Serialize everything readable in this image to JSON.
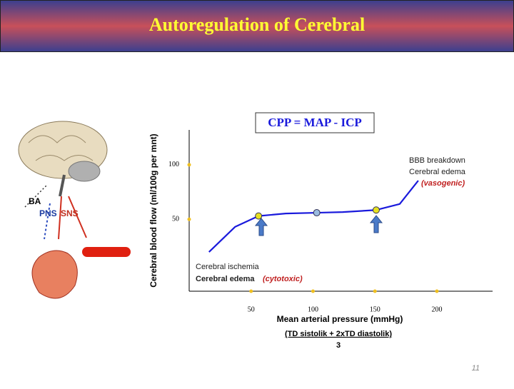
{
  "slide_title": "Autoregulation of Cerebral",
  "page_number": "11",
  "figure_labels": {
    "ba": "BA",
    "pns": "PNS",
    "sns": "SNS"
  },
  "chart_data": {
    "type": "line",
    "formula": "CPP = MAP - ICP",
    "x_label": "Mean arterial pressure  (mmHg)",
    "x_sublabel": "(TD sistolik + 2xTD diastolik)",
    "x_sublabel_denominator": "3",
    "y_label": "Cerebral blood flow (ml/100g per mnt)",
    "annotations": [
      "BBB breakdown",
      "Cerebral edema",
      "(vasogenic)",
      "Cerebral ischemia",
      "Cerebral edema",
      "(cytotoxic)"
    ],
    "xlim": [
      0,
      245
    ],
    "xticks": [
      50,
      100,
      150,
      200
    ],
    "ylim": [
      -16,
      132
    ],
    "yticks": [
      50,
      100
    ],
    "series": [
      {
        "color": "#1a1adc",
        "x": [
          16,
          37,
          56,
          78,
          103,
          124,
          151,
          170,
          185
        ],
        "values": [
          20,
          43,
          53,
          55.3,
          56,
          56.6,
          58.5,
          64,
          85.5
        ]
      }
    ],
    "points": {
      "x": [
        56,
        103,
        151
      ],
      "values": [
        53,
        56,
        58.5
      ],
      "colors": [
        "#e6e020",
        "#9bbbe0",
        "#e6e020"
      ]
    }
  }
}
